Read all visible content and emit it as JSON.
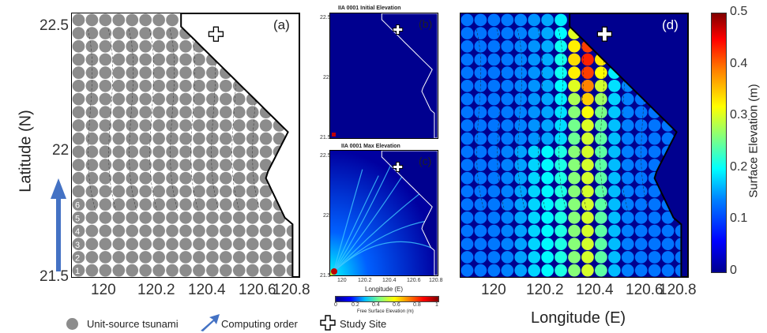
{
  "chart_data": [
    {
      "id": "a",
      "type": "scatter",
      "panel_label": "(a)",
      "ylabel": "Latitude (N)",
      "x_ticks": [
        "120",
        "120.2",
        "120.4",
        "120.6",
        "120.8"
      ],
      "y_ticks": [
        "22.5",
        "22",
        "21.5"
      ],
      "xlim": [
        119.9,
        120.8
      ],
      "ylim": [
        21.5,
        22.52
      ],
      "grid_cols": 17,
      "grid_rows": 20,
      "row_numbers": [
        "1",
        "2",
        "3",
        "4",
        "5",
        "6"
      ],
      "study_site": {
        "lon": 120.47,
        "lat": 22.44
      }
    },
    {
      "id": "b",
      "type": "heatmap",
      "panel_label": "(b)",
      "title": "IIA 0001   Initial Elevation",
      "y_ticks": [
        "22.5",
        "22",
        "21.5"
      ],
      "xlim": [
        120,
        120.8
      ],
      "ylim": [
        21.5,
        22.52
      ],
      "study_site": {
        "lon": 120.47,
        "lat": 22.44
      }
    },
    {
      "id": "c",
      "type": "heatmap",
      "panel_label": "(c)",
      "title": "IIA 0001   Max Elevation",
      "xlabel": "Longitude (E)",
      "x_ticks": [
        "120",
        "120.2",
        "120.4",
        "120.6",
        "120.8"
      ],
      "y_ticks": [
        "22.5",
        "22",
        "21.5"
      ],
      "colorbar_ticks": [
        "0",
        "0.2",
        "0.4",
        "0.6",
        "0.8",
        "1"
      ],
      "colorbar_label": "Free Surface Elevation (m)",
      "study_site": {
        "lon": 120.47,
        "lat": 22.44
      }
    },
    {
      "id": "d",
      "type": "heatmap",
      "panel_label": "(d)",
      "xlabel": "Longitude (E)",
      "x_ticks": [
        "120",
        "120.2",
        "120.4",
        "120.6",
        "120.8"
      ],
      "xlim": [
        119.9,
        120.8
      ],
      "ylim": [
        21.5,
        22.52
      ],
      "colorbar_label": "Surface Elevation (m)",
      "colorbar_ticks": [
        "0.5",
        "0.4",
        "0.3",
        "0.2",
        "0.1",
        "0"
      ],
      "clim": [
        0,
        0.5
      ],
      "grid_cols": 17,
      "grid_rows": 20,
      "study_site": {
        "lon": 120.47,
        "lat": 22.44
      }
    }
  ],
  "legend": {
    "unit_source": "Unit-source tsunami",
    "computing_order": "Computing order",
    "study_site": "Study Site"
  },
  "colors": {
    "unit_circle": "#8c8c8c",
    "ocean_dark": "#00008f",
    "arrow": "#4472c4"
  }
}
